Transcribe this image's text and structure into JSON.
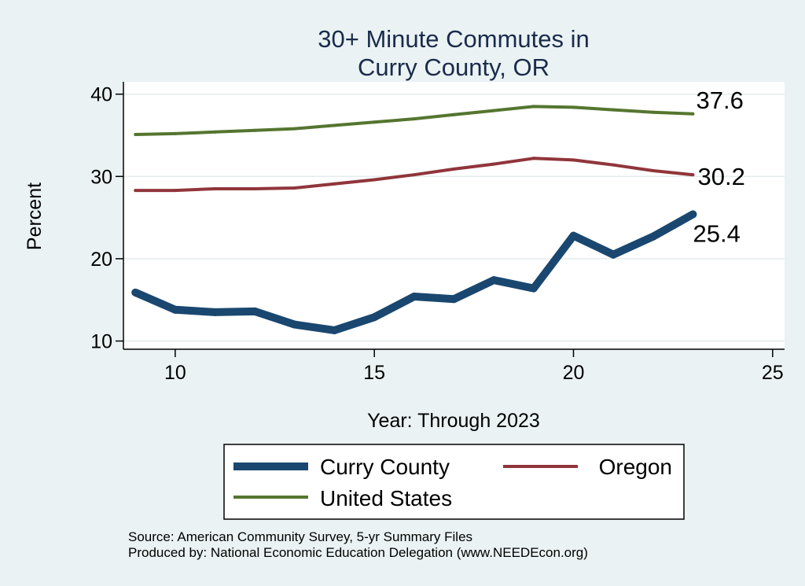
{
  "chart_data": {
    "type": "line",
    "title": [
      "30+ Minute Commutes in",
      "Curry County, OR"
    ],
    "xlabel": "Year: Through 2023",
    "ylabel": "Percent",
    "xlim": [
      8.7,
      25.3
    ],
    "ylim": [
      9.0,
      41.5
    ],
    "xticks": [
      10,
      15,
      20,
      25
    ],
    "yticks": [
      10,
      20,
      30,
      40
    ],
    "grid": true,
    "legend_position": "bottom",
    "series": [
      {
        "name": "Curry County",
        "color": "#1a476f",
        "x": [
          9,
          10,
          11,
          12,
          13,
          14,
          15,
          16,
          17,
          18,
          19,
          20,
          21,
          22,
          23
        ],
        "y": [
          15.9,
          13.8,
          13.5,
          13.6,
          12.0,
          11.3,
          12.9,
          15.4,
          15.1,
          17.4,
          16.4,
          22.8,
          20.5,
          22.7,
          25.4
        ],
        "end_label": "25.4"
      },
      {
        "name": "Oregon",
        "color": "#90353b",
        "x": [
          9,
          10,
          11,
          12,
          13,
          14,
          15,
          16,
          17,
          18,
          19,
          20,
          21,
          22,
          23
        ],
        "y": [
          28.3,
          28.3,
          28.5,
          28.5,
          28.6,
          29.1,
          29.6,
          30.2,
          30.9,
          31.5,
          32.2,
          32.0,
          31.4,
          30.7,
          30.2
        ],
        "end_label": "30.2"
      },
      {
        "name": "United States",
        "color": "#55752f",
        "x": [
          9,
          10,
          11,
          12,
          13,
          14,
          15,
          16,
          17,
          18,
          19,
          20,
          21,
          22,
          23
        ],
        "y": [
          35.1,
          35.2,
          35.4,
          35.6,
          35.8,
          36.2,
          36.6,
          37.0,
          37.5,
          38.0,
          38.5,
          38.4,
          38.1,
          37.8,
          37.6
        ],
        "end_label": "37.6"
      }
    ],
    "notes": [
      "Source: American Community Survey, 5-yr Summary Files",
      "Produced by: National Economic Education Delegation (www.NEEDEcon.org)"
    ]
  }
}
